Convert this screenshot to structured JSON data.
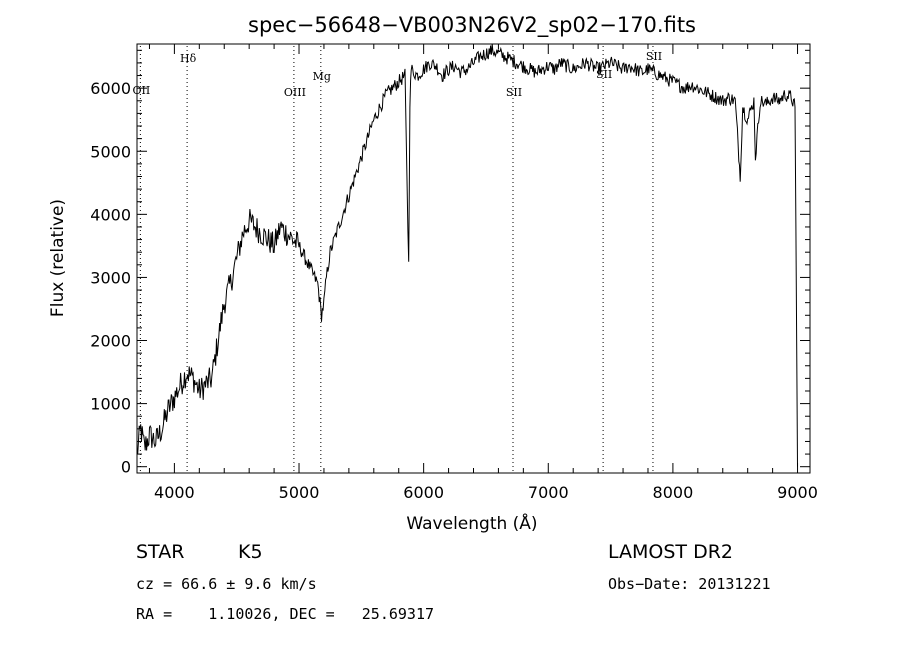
{
  "chart_data": {
    "type": "line",
    "title": "spec−56648−VB003N26V2_sp02−170.fits",
    "xlabel": "Wavelength (Å)",
    "ylabel": "Flux (relative)",
    "xlim": [
      3700,
      9100
    ],
    "ylim": [
      -100,
      6700
    ],
    "xticks": [
      4000,
      5000,
      6000,
      7000,
      8000,
      9000
    ],
    "yticks": [
      0,
      1000,
      2000,
      3000,
      4000,
      5000,
      6000
    ],
    "grid": false,
    "series": [
      {
        "x": [
          3700,
          3730,
          3760,
          3800,
          3850,
          3900,
          3950,
          4000,
          4050,
          4100,
          4150,
          4200,
          4250,
          4300,
          4350,
          4400,
          4450,
          4500,
          4550,
          4600,
          4650,
          4700,
          4750,
          4800,
          4850,
          4900,
          4950,
          5000,
          5050,
          5100,
          5150,
          5180,
          5200,
          5220,
          5250,
          5300,
          5350,
          5400,
          5450,
          5500,
          5550,
          5600,
          5650,
          5700,
          5750,
          5800,
          5850,
          5880,
          5890,
          5900,
          5950,
          6000,
          6050,
          6100,
          6150,
          6200,
          6250,
          6300,
          6350,
          6400,
          6450,
          6500,
          6550,
          6600,
          6650,
          6700,
          6750,
          6800,
          6850,
          6900,
          6950,
          7000,
          7050,
          7100,
          7150,
          7200,
          7250,
          7300,
          7350,
          7400,
          7450,
          7500,
          7550,
          7600,
          7650,
          7700,
          7750,
          7800,
          7850,
          7900,
          7950,
          8000,
          8050,
          8100,
          8150,
          8200,
          8250,
          8300,
          8350,
          8400,
          8450,
          8500,
          8540,
          8560,
          8600,
          8650,
          8662,
          8700,
          8750,
          8800,
          8850,
          8900,
          8950,
          8980,
          9000
        ],
        "y": [
          200,
          600,
          300,
          500,
          400,
          600,
          900,
          1100,
          1300,
          1500,
          1400,
          1200,
          1300,
          1400,
          2000,
          2600,
          2900,
          3300,
          3700,
          3900,
          3800,
          3700,
          3600,
          3500,
          3800,
          3700,
          3600,
          3500,
          3300,
          3100,
          2900,
          2400,
          2600,
          3000,
          3400,
          3700,
          4000,
          4300,
          4600,
          4900,
          5200,
          5500,
          5700,
          5900,
          6000,
          6100,
          6200,
          3200,
          5800,
          6300,
          6200,
          6300,
          6400,
          6350,
          6200,
          6300,
          6350,
          6250,
          6300,
          6400,
          6500,
          6550,
          6600,
          6550,
          6500,
          6450,
          6400,
          6350,
          6300,
          6250,
          6300,
          6350,
          6300,
          6400,
          6350,
          6300,
          6350,
          6400,
          6350,
          6300,
          6350,
          6400,
          6350,
          6300,
          6350,
          6300,
          6250,
          6300,
          6250,
          6200,
          6150,
          6100,
          6050,
          6000,
          6050,
          6000,
          5950,
          5900,
          5850,
          5800,
          5850,
          5800,
          4600,
          5700,
          5500,
          5800,
          4900,
          5800,
          5750,
          5850,
          5800,
          5900,
          5850,
          5700,
          0
        ]
      }
    ],
    "lines": [
      {
        "label": "OII",
        "x": 3727
      },
      {
        "label": "Hδ",
        "x": 4102
      },
      {
        "label": "OIII",
        "x": 4959
      },
      {
        "label": "Mg",
        "x": 5175
      },
      {
        "label": "SII",
        "x": 6717
      },
      {
        "label": "SII",
        "x": 7440
      },
      {
        "label": "SII",
        "x": 7840
      }
    ]
  },
  "info": {
    "object_class": "STAR",
    "subclass": "K5",
    "survey": "LAMOST DR2",
    "cz": "cz = 66.6 ± 9.6 km/s",
    "obs_date": "Obs−Date: 20131221",
    "coords": "RA =    1.10026, DEC =   25.69317"
  }
}
